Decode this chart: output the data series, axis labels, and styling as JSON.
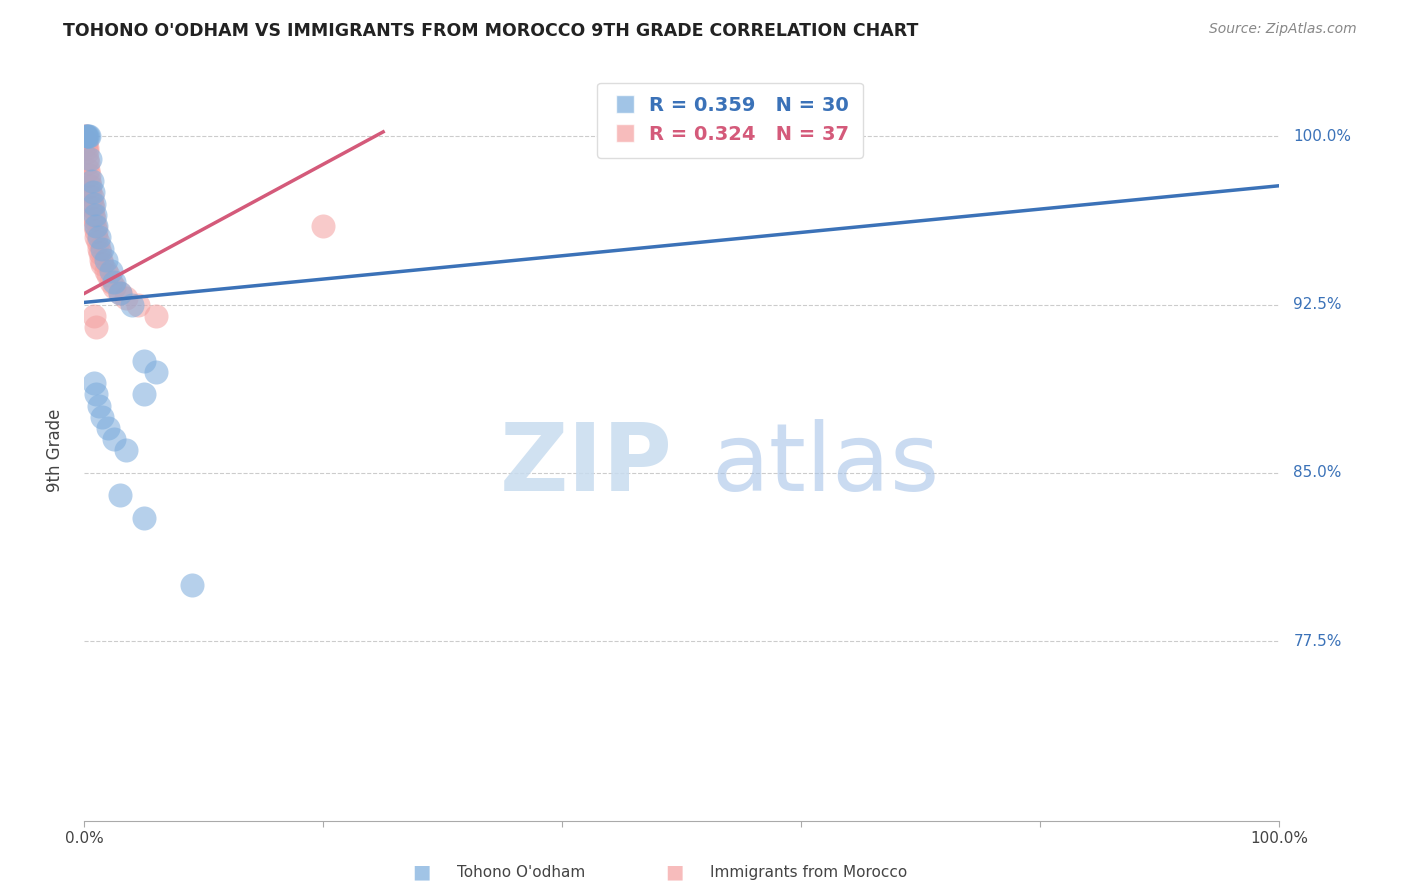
{
  "title": "TOHONO O'ODHAM VS IMMIGRANTS FROM MOROCCO 9TH GRADE CORRELATION CHART",
  "source": "Source: ZipAtlas.com",
  "ylabel": "9th Grade",
  "watermark_zip": "ZIP",
  "watermark_atlas": "atlas",
  "legend_blue_text": "R = 0.359   N = 30",
  "legend_pink_text": "R = 0.324   N = 37",
  "legend_label_blue": "Tohono O'odham",
  "legend_label_pink": "Immigrants from Morocco",
  "blue_color": "#7AABDC",
  "pink_color": "#F4A0A0",
  "blue_line_color": "#3B72B8",
  "pink_line_color": "#D45A7A",
  "blue_scatter_x": [
    0.001,
    0.002,
    0.003,
    0.004,
    0.005,
    0.006,
    0.007,
    0.008,
    0.009,
    0.01,
    0.012,
    0.015,
    0.018,
    0.022,
    0.025,
    0.03,
    0.04,
    0.05,
    0.06,
    0.008,
    0.01,
    0.012,
    0.015,
    0.02,
    0.025,
    0.035,
    0.05,
    0.03,
    0.05,
    0.09
  ],
  "blue_scatter_y": [
    1.0,
    1.0,
    1.0,
    1.0,
    0.99,
    0.98,
    0.975,
    0.97,
    0.965,
    0.96,
    0.955,
    0.95,
    0.945,
    0.94,
    0.935,
    0.93,
    0.925,
    0.9,
    0.895,
    0.89,
    0.885,
    0.88,
    0.875,
    0.87,
    0.865,
    0.86,
    0.885,
    0.84,
    0.83,
    0.8
  ],
  "pink_scatter_x": [
    0.0005,
    0.001,
    0.001,
    0.001,
    0.002,
    0.002,
    0.002,
    0.003,
    0.003,
    0.004,
    0.004,
    0.005,
    0.005,
    0.006,
    0.006,
    0.007,
    0.007,
    0.008,
    0.009,
    0.01,
    0.01,
    0.011,
    0.012,
    0.013,
    0.014,
    0.015,
    0.018,
    0.02,
    0.022,
    0.025,
    0.03,
    0.035,
    0.045,
    0.008,
    0.01,
    0.06,
    0.2
  ],
  "pink_scatter_y": [
    1.0,
    1.0,
    0.998,
    0.996,
    0.995,
    0.993,
    0.99,
    0.988,
    0.985,
    0.983,
    0.98,
    0.978,
    0.975,
    0.973,
    0.97,
    0.968,
    0.965,
    0.963,
    0.96,
    0.958,
    0.955,
    0.953,
    0.95,
    0.948,
    0.945,
    0.943,
    0.94,
    0.938,
    0.935,
    0.933,
    0.93,
    0.928,
    0.925,
    0.92,
    0.915,
    0.92,
    0.96
  ],
  "blue_line_x0": 0.0,
  "blue_line_x1": 1.0,
  "blue_line_y0": 0.926,
  "blue_line_y1": 0.978,
  "pink_line_x0": 0.0,
  "pink_line_x1": 0.25,
  "pink_line_y0": 0.93,
  "pink_line_y1": 1.002,
  "xlim": [
    0.0,
    1.0
  ],
  "ylim": [
    0.695,
    1.025
  ],
  "ytick_values": [
    0.775,
    0.85,
    0.925,
    1.0
  ],
  "ytick_labels": [
    "77.5%",
    "85.0%",
    "92.5%",
    "100.0%"
  ],
  "grid_color": "#CCCCCC",
  "background_color": "#FFFFFF"
}
